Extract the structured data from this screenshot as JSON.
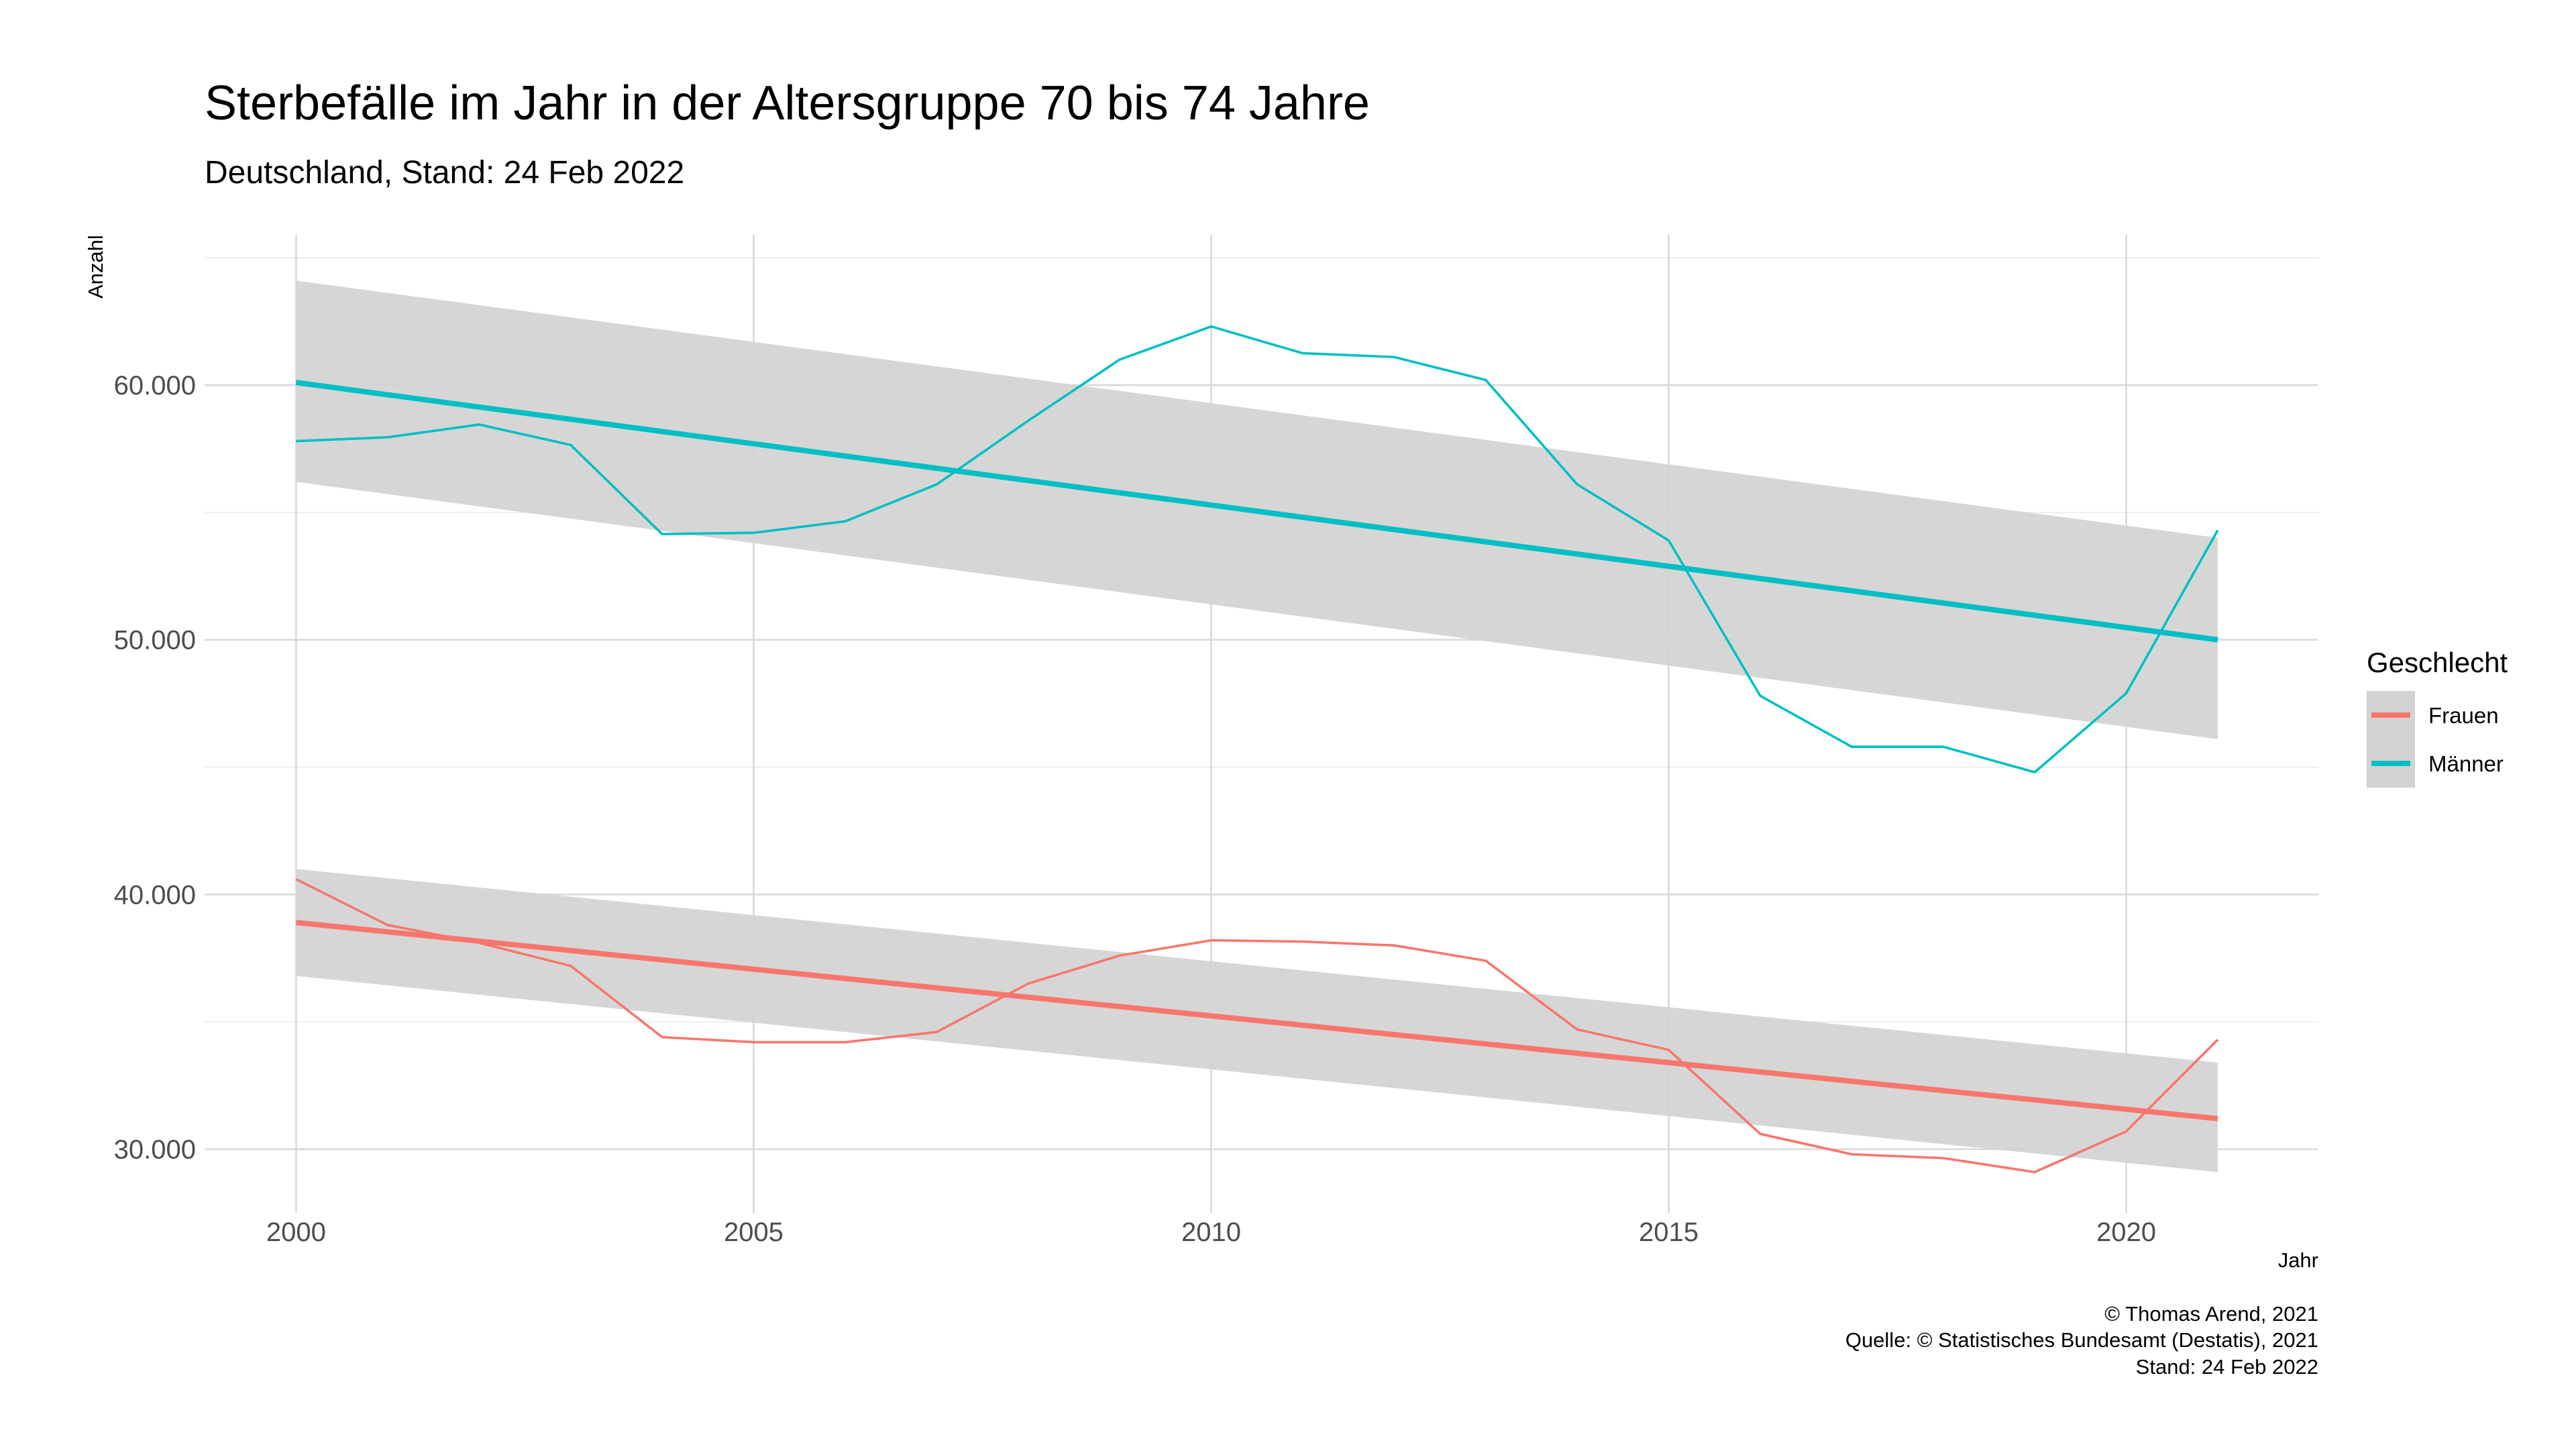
{
  "chart_data": {
    "type": "line",
    "title": "Sterbefälle im Jahr in der Altersgruppe 70 bis 74 Jahre",
    "subtitle": "Deutschland, Stand: 24 Feb 2022",
    "xlabel": "Jahr",
    "ylabel": "Anzahl",
    "xlim": [
      1999,
      2022.1
    ],
    "ylim": [
      27500,
      65900
    ],
    "x_ticks": [
      2000,
      2005,
      2010,
      2015,
      2020
    ],
    "x_tick_labels": [
      "2000",
      "2005",
      "2010",
      "2015",
      "2020"
    ],
    "y_ticks": [
      30000,
      40000,
      50000,
      60000
    ],
    "y_tick_labels": [
      "30.000",
      "40.000",
      "50.000",
      "60.000"
    ],
    "grid": true,
    "legend": {
      "title": "Geschlecht",
      "position": "right"
    },
    "x": [
      2000,
      2001,
      2002,
      2003,
      2004,
      2005,
      2006,
      2007,
      2008,
      2009,
      2010,
      2011,
      2012,
      2013,
      2014,
      2015,
      2016,
      2017,
      2018,
      2019,
      2020,
      2021
    ],
    "series": [
      {
        "name": "Frauen",
        "color": "#F8766D",
        "values": [
          40600,
          38800,
          38100,
          37200,
          34400,
          34200,
          34200,
          34600,
          36500,
          37600,
          38200,
          38150,
          38000,
          37400,
          34700,
          33900,
          30600,
          29800,
          29650,
          29100,
          30700,
          34300
        ],
        "trend": {
          "start": [
            2000,
            38900
          ],
          "end": [
            2021,
            31200
          ]
        },
        "confidence_band": {
          "upper": [
            [
              2000,
              41000
            ],
            [
              2021,
              33400
            ]
          ],
          "lower": [
            [
              2000,
              36800
            ],
            [
              2021,
              29100
            ]
          ]
        }
      },
      {
        "name": "Männer",
        "color": "#00BFC4",
        "values": [
          57800,
          57950,
          58450,
          57650,
          54150,
          54200,
          54650,
          56100,
          58600,
          61000,
          62300,
          61250,
          61100,
          60200,
          56100,
          53900,
          47800,
          45800,
          45800,
          44800,
          47900,
          54300
        ],
        "trend": {
          "start": [
            2000,
            60100
          ],
          "end": [
            2021,
            50000
          ]
        },
        "confidence_band": {
          "upper": [
            [
              2000,
              64100
            ],
            [
              2021,
              54000
            ]
          ],
          "lower": [
            [
              2000,
              56200
            ],
            [
              2021,
              46100
            ]
          ]
        }
      }
    ],
    "band_color": "#D3D3D3",
    "caption": [
      "© Thomas Arend, 2021",
      "Quelle: © Statistisches Bundesamt (Destatis), 2021",
      "Stand: 24 Feb 2022"
    ]
  }
}
